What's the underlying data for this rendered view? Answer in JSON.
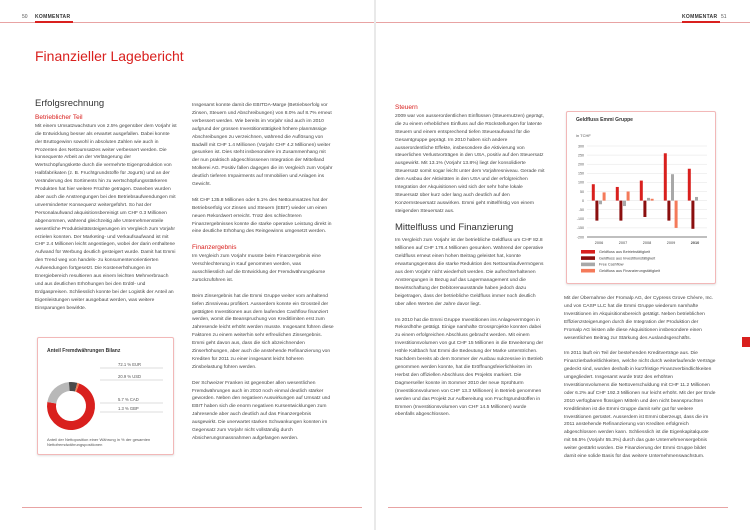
{
  "left_page": {
    "page_number": "50",
    "section": "KOMMENTAR",
    "title": "Finanzieller Lagebericht",
    "heading": "Erfolgsrechnung",
    "sub1": "Betrieblicher Teil",
    "col1": [
      "Mit einem Umsatzwachstum von 2.5% gegenüber dem Vorjahr ist die Entwicklung besser als erwartet ausgefallen. Dabei konnte der Bruttogewinn sowohl in absoluten Zahlen wie auch in Prozenten des Nettoumsatzes weiter verbessert werden. Die konsequente Arbeit an der Verlängerung der Wertschöpfungskette durch die vermehrte Eigenproduktion von Halbfabrikaten (z. B. Fruchtgrundstoffe für Jogurts) und an der Veränderung des Sortiments hin zu wertschöpfungsstärkeren Produkten hat hier weitere Früchte getragen. Daneben wurden aber auch die Anstrengungen bei den Betriebsaufwendungen mit unverminderter Konsequenz weitergeführt. So hat der Personalaufwand akquisitionsbereinigt um CHF 0.3 Millionen abgenommen, während gleichzeitig alle Unternehmensteile wesentliche Produktivitätssteigerungen im Vergleich zum Vorjahr erzielen konnten. Der Marketing- und Verkaufsaufwand ist mit CHF 2.4 Millionen leicht angestiegen, wobei der darin enthaltene Aufwand für Werbung deutlich gesteigert wurde. Damit hat Emmi den Trend weg von handels- zu konsumentenorientierten Aufwendungen fortgesetzt. Die Kostenerhöhungen im Energiebereich resultieren aus einem leichten Mehrverbrauch und aus deutlichen Erhöhungen bei den Erdöl- und Erdgaspreisen. Schliesslich konnte bei der Logistik der Anteil an Eigenleistungen weiter ausgebaut werden, was weitere Einsparungen bewirkte."
    ],
    "donut": {
      "title": "Anteil Fremdwährungen Bilanz",
      "segments": [
        {
          "label": "72.1 %  EUR",
          "value": 72.1,
          "color": "#d9201e"
        },
        {
          "label": "20.9 %  USD",
          "value": 20.9,
          "color": "#b8b8b8"
        },
        {
          "label": "5.7 %  CAD",
          "value": 5.7,
          "color": "#4a4a4a"
        },
        {
          "label": "1.3 %  GBP",
          "value": 1.3,
          "color": "#f07a50"
        }
      ],
      "note": "Anteil der Nettoposition einer Währung in % der gesamten Nettofremdwährungspositionen"
    },
    "col2": [
      "Insgesamt konnte damit die EBITDA-Marge (Betriebserfolg vor Zinsen, Steuern und Abschreibungen) von 8.0% auf 8.7% erneut verbessert werden. Wie bereits im Vorjahr sind auch im 2010 aufgrund der grossen Investitionstätigkeit höhere planmässige Abschreibungen zu verzeichnen, während die Auflösung von Badwill mit CHF 1.4 Millionen (Vorjahr CHF 4.2 Millionen) weiter gesunken ist. Dies steht insbesondere im Zusammenhang mit der nun praktisch abgeschlossenen Integration der Mittelland Molkerei AG. Positiv fallen dagegen die im Vergleich zum Vorjahr deutlich tieferen Impairments auf Immobilien und Anlagen ins Gewicht.",
      "Mit CHF 135.8 Millionen oder 5.1% des Nettoumsatzes hat der Betriebserfolg vor Zinsen und Steuern (EBIT) wieder um einen neuen Rekordwert erreicht. Trotz des schlechteren Finanzergebnisses konnte die starke operative Leistung direkt in eine deutliche Erhöhung des Reingewinns umgesetzt werden."
    ],
    "sub2": "Finanzergebnis",
    "col2b": [
      "Im Vergleich zum Vorjahr musste beim Finanzergebnis eine Verschlechterung in Kauf genommen werden, was ausschliesslich auf die Entwicklung der Fremdwährungskurse zurückzuführen ist.",
      "Beim Zinsergebnis hat die Emmi Gruppe weiter vom anhaltend tiefen Zinsniveau profitiert. Ausserdem konnte ein Grossteil der getätigten Investitionen aus dem laufenden Cashflow finanziert werden, womit die Beanspruchung von Kreditlimiten erst zum Jahresende leicht erhöht werden musste. Insgesamt führen diese Faktoren zu einem weiterhin sehr erfreulichen Zinsergebnis. Emmi geht davon aus, dass die sich abzeichnenden Zinserhöhungen, aber auch die anstehende Refinanzierung von Krediten für 2011 zu einer insgesamt leicht höheren Zinsbelastung führen werden.",
      "Der Schweizer Franken ist gegenüber allen wesentlichen Fremdwährungen auch im 2010 noch einmal deutlich stärker geworden. Neben den negativen Auswirkungen auf Umsatz und EBIT haben sich die enorm negativen Kursentwicklungen zum Jahresende aber auch deutlich auf das Finanzergebnis ausgewirkt. Die unerwartet starken Schwankungen konnten im Gegensatz zum Vorjahr nicht vollständig durch Absicherungsmassnahmen aufgefangen werden."
    ]
  },
  "right_page": {
    "page_number": "51",
    "section": "KOMMENTAR",
    "sub_steuern": "Steuern",
    "steuern": "2009 war von ausserordentlichen Einflüssen (Steuernutzen) geprägt, die zu einem erheblichen Einfluss auf die Rückstellungen für latente Steuern und einem entsprechend tiefen Steueraufwand für die Gesamtgruppe geprägt. Im 2010 haben sich andere ausserordentliche Effekte, insbesondere die Aktivierung von steuerlichen Verlustvorträgen in den USA, positiv auf den Steuersatz ausgewirkt. Mit 13.1% (Vorjahr 13.8%) liegt der konsolidierte Steuersatz somit sogar leicht unter dem Vorjahresniveau. Gerade mit dem Ausbau der Aktivitäten in den USA und der erfolgreichen Integration der Akquisitionen wird sich der sehr hohe lokale Steuersatz über kurz oder lang auch deutlich auf den Konzernsteuersatz auswirken. Emmi geht mittelfristig von einem steigenden Steuersatz aus.",
    "heading": "Mittelfluss und Finanzierung",
    "col1": [
      "Im Vergleich zum Vorjahr ist der betriebliche Geldfluss um CHF 82.8 Millionen auf CHF 176.4 Millionen gesunken. Während der operative Geldfluss erneut einen hohen Beitrag geleistet hat, konnte erwartungsgemäss die starke Reduktion des Nettoumlaufvermögens aus dem Vorjahr nicht wiederholt werden. Die aufrechterhaltenen Anstrengungen in Bezug auf das Lagermanagement und die Bewirtschaftung der Debitorenausstände haben jedoch dazu beigetragen, dass der betriebliche Geldfluss immer noch deutlich über allen Werten der Jahre davor liegt.",
      "Im 2010 hat die Emmi Gruppe Investitionen ins Anlagevermögen in Rekordhöhe getätigt. Einige namhafte Grossprojekte konnten dabei zu einem erfolgreichen Abschluss gebracht werden. Mit einem Investitionsvolumen von gut CHF 15 Millionen in die Erweiterung der Höhle Kaltbach hat Emmi die Bedeutung der Marke unterstrichen. Nachdem bereits ab dem Sommer der Ausbau sukzessive in Betrieb genommen werden konnte, hat die Eröffnungsfeierlichkeiten im Herbst den offiziellen Abschluss des Projekts markiert. Die Dagmerseller konnte im Sommer 2010 der neue Sprühturm (Investitionsvolumen von CHF 13.3 Millionen) in Betrieb genommen werden und das Projekt zur Aufbereitung von Fruchtgrundstoffen in Emmen (Investitionsvolumen von CHF 14.5 Millionen) wurde ebenfalls abgeschlossen."
    ],
    "chart_data": {
      "type": "bar",
      "title": "Geldfluss Emmi Gruppe",
      "ylabel": "in TCHF",
      "categories": [
        "2006",
        "2007",
        "2008",
        "2009",
        "2010"
      ],
      "ylim": [
        -200,
        300
      ],
      "yticks": [
        300,
        250,
        200,
        150,
        100,
        50,
        0,
        -50,
        -100,
        -150,
        -200
      ],
      "grid": true,
      "legend_position": "bottom",
      "series": [
        {
          "name": "Geldfluss aus Betriebstätigkeit",
          "color": "#d9201e",
          "values": [
            90,
            75,
            110,
            260,
            175
          ]
        },
        {
          "name": "Geldfluss aus Investitionstätigkeit",
          "color": "#8b0f0f",
          "values": [
            -110,
            -110,
            -90,
            -110,
            -155
          ]
        },
        {
          "name": "Free Cashflow",
          "color": "#a8a8a8",
          "values": [
            -20,
            -30,
            15,
            145,
            20
          ]
        },
        {
          "name": "Geldfluss aus Finanzierungstätigkeit",
          "color": "#f47a5a",
          "values": [
            45,
            50,
            10,
            -150,
            0
          ]
        }
      ]
    },
    "col2": [
      "Mit der Übernahme der Fromalp AG, der Cypress Grove Chèvre, Inc. und von CASP LLC hat die Emmi Gruppe wiederum namhafte Investitionen im Akquisitionsbereich getätigt. Neben betrieblichen Effizienzsteigerungen durch die Integration der Produktion der Fromalp AG leisten alle diese Akquisitionen insbesondere einen wesentlichen Beitrag zur Stärkung des Auslandsgeschäfts.",
      "Im 2011 läuft ein Teil der bestehenden Kreditverträge aus. Die Finanzierbarkeitlichkeiten, welche nicht durch weiterlaufende Verträge gedeckt sind, wurden deshalb in kurzfristige Finanzverbindlichkeiten umgegliedert. Insgesamt wurde trotz des erhöhten Investitionsvolumens die Nettoverschuldung mit CHF 11.2 Millionen oder 6.2% auf CHF 192.3 Millionen nur leicht erhöht. Mit der per Ende 2010 verfügbaren flüssigen Mitteln und den nicht beanspruchten Kreditlimiten ist die Emmi Gruppe damit sehr gut für weitere Investitionen gerüstet. Ausserdem ist Emmi überzeugt, dass die im 2011 anstehende Refinanzierung von Krediten erfolgreich abgeschlossen werden kann. Schliesslich ist die Eigenkapitalquote mit 56.5% (Vorjahr 55.3%) durch das gute Unternehmensergebnis weiter gestärkt worden. Die Finanzierung der Emmi Gruppe bildet damit eine solide Basis für das weitere Unternehmenswachstum."
    ]
  }
}
